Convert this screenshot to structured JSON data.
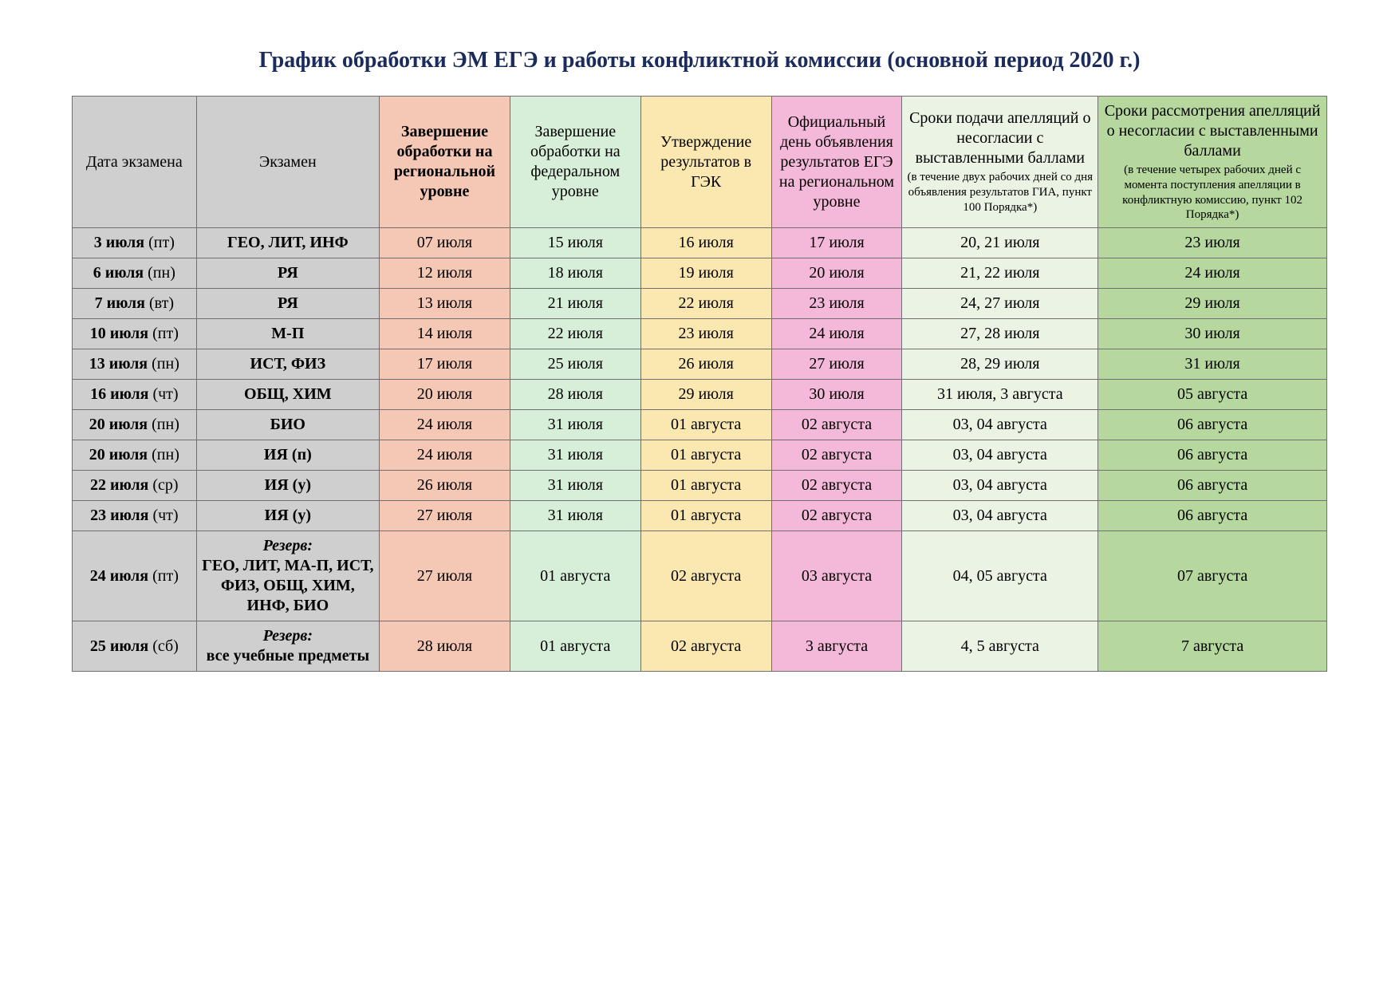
{
  "title": "График обработки ЭМ ЕГЭ и работы конфликтной комиссии (основной период 2020 г.)",
  "title_color": "#1a2b5c",
  "colors": {
    "col0_bg": "#cfcfcf",
    "col1_bg": "#cfcfcf",
    "col2_bg": "#f5c8b6",
    "col3_bg": "#d7efd8",
    "col4_bg": "#fbe8b0",
    "col5_bg": "#f4b8d9",
    "col6_bg": "#eaf3e4",
    "col7_bg": "#b6d89e",
    "border": "#707070"
  },
  "headers": {
    "c0": "Дата экзамена",
    "c1": "Экзамен",
    "c2": "Завершение обработки на региональной уровне",
    "c3": "Завершение обработки на федеральном уровне",
    "c4": "Утверждение результатов в ГЭК",
    "c5": "Официальный день объявления результатов ЕГЭ на региональном уровне",
    "c6_main": "Сроки подачи апелляций о несогласии с выставленными баллами",
    "c6_small": "(в течение двух рабочих дней со дня объявления результатов ГИА, пункт 100 Порядка*)",
    "c7_main": "Сроки рассмотрения апелляций о несогласии с выставленными баллами",
    "c7_small": "(в течение четырех рабочих дней с момента поступления апелляции в конфликтную комиссию, пункт 102 Порядка*)"
  },
  "header_bold_cols": [
    2
  ],
  "rows": [
    {
      "date": "3 июля",
      "dow": "(пт)",
      "exam": "ГЕО, ЛИТ, ИНФ",
      "c2": "07 июля",
      "c3": "15 июля",
      "c4": "16 июля",
      "c5": "17 июля",
      "c6": "20, 21 июля",
      "c7": "23 июля"
    },
    {
      "date": "6 июля",
      "dow": "(пн)",
      "exam": "РЯ",
      "c2": "12 июля",
      "c3": "18 июля",
      "c4": "19 июля",
      "c5": "20 июля",
      "c6": "21, 22 июля",
      "c7": "24 июля"
    },
    {
      "date": "7 июля",
      "dow": "(вт)",
      "exam": "РЯ",
      "c2": "13 июля",
      "c3": "21 июля",
      "c4": "22 июля",
      "c5": "23 июля",
      "c6": "24, 27 июля",
      "c7": "29 июля"
    },
    {
      "date": "10 июля",
      "dow": "(пт)",
      "exam": "М-П",
      "c2": "14 июля",
      "c3": "22 июля",
      "c4": "23 июля",
      "c5": "24 июля",
      "c6": "27, 28 июля",
      "c7": "30 июля"
    },
    {
      "date": "13 июля",
      "dow": "(пн)",
      "exam": "ИСТ, ФИЗ",
      "c2": "17 июля",
      "c3": "25 июля",
      "c4": "26 июля",
      "c5": "27 июля",
      "c6": "28, 29 июля",
      "c7": "31 июля"
    },
    {
      "date": "16 июля",
      "dow": "(чт)",
      "exam": "ОБЩ, ХИМ",
      "c2": "20 июля",
      "c3": "28 июля",
      "c4": "29 июля",
      "c5": "30 июля",
      "c6": "31 июля, 3 августа",
      "c7": "05 августа"
    },
    {
      "date": "20 июля",
      "dow": "(пн)",
      "exam": "БИО",
      "c2": "24 июля",
      "c3": "31 июля",
      "c4": "01 августа",
      "c5": "02 августа",
      "c6": "03, 04 августа",
      "c7": "06 августа"
    },
    {
      "date": "20 июля",
      "dow": "(пн)",
      "exam": "ИЯ (п)",
      "c2": "24 июля",
      "c3": "31 июля",
      "c4": "01 августа",
      "c5": "02 августа",
      "c6": "03, 04 августа",
      "c7": "06 августа"
    },
    {
      "date": "22 июля",
      "dow": "(ср)",
      "exam": "ИЯ (у)",
      "c2": "26 июля",
      "c3": "31 июля",
      "c4": "01 августа",
      "c5": "02 августа",
      "c6": "03, 04 августа",
      "c7": "06 августа"
    },
    {
      "date": "23 июля",
      "dow": "(чт)",
      "exam": "ИЯ (у)",
      "c2": "27 июля",
      "c3": "31 июля",
      "c4": "01 августа",
      "c5": "02 августа",
      "c6": "03, 04 августа",
      "c7": "06 августа"
    },
    {
      "date": "24 июля",
      "dow": "(пт)",
      "reserve": true,
      "reserve_label": "Резерв:",
      "exam": "ГЕО, ЛИТ, МА-П, ИСТ, ФИЗ, ОБЩ, ХИМ, ИНФ, БИО",
      "c2": "27 июля",
      "c3": "01 августа",
      "c4": "02 августа",
      "c5": "03 августа",
      "c6": "04, 05 августа",
      "c7": "07 августа"
    },
    {
      "date": "25 июля",
      "dow": "(сб)",
      "reserve": true,
      "reserve_label": "Резерв:",
      "exam": "все учебные предметы",
      "c2": "28 июля",
      "c3": "01 августа",
      "c4": "02 августа",
      "c5": "3 августа",
      "c6": "4, 5 августа",
      "c7": "7 августа"
    }
  ],
  "col_widths_pct": [
    9.5,
    14,
    10,
    10,
    10,
    10,
    15,
    17.5
  ],
  "font_sizes": {
    "title": 28,
    "cell": 20,
    "small": 15
  }
}
